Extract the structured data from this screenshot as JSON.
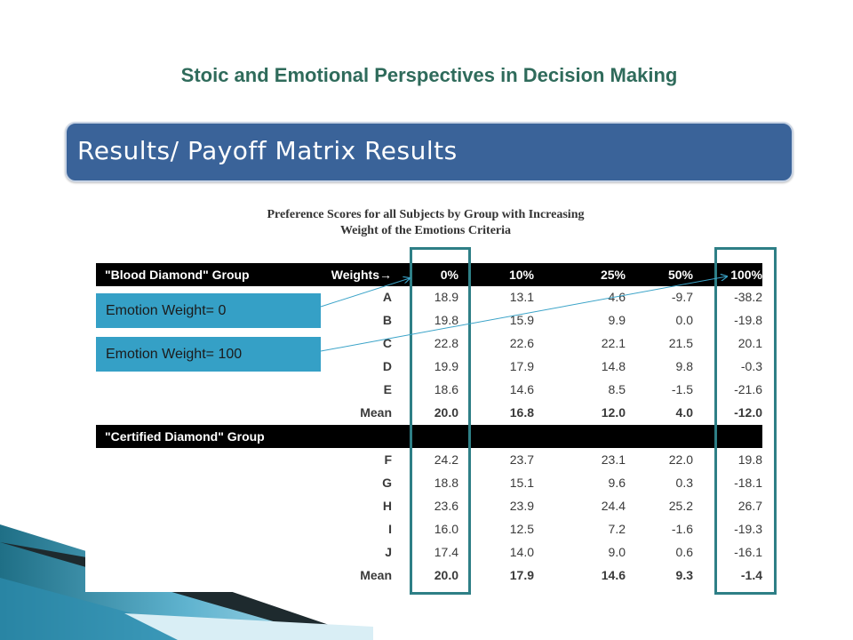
{
  "slide": {
    "title": "Stoic and Emotional Perspectives in Decision Making",
    "header": "Results/ Payoff Matrix Results"
  },
  "table": {
    "caption_line1": "Preference Scores for all Subjects by Group with Increasing",
    "caption_line2": "Weight of the Emotions Criteria",
    "weights_label": "Weights→",
    "weights": [
      "0%",
      "10%",
      "25%",
      "50%",
      "100%"
    ],
    "groups": [
      {
        "name": "\"Blood Diamond\" Group",
        "rows": [
          {
            "label": "A",
            "values": [
              "18.9",
              "13.1",
              "4.6",
              "-9.7",
              "-38.2"
            ]
          },
          {
            "label": "B",
            "values": [
              "19.8",
              "15.9",
              "9.9",
              "0.0",
              "-19.8"
            ]
          },
          {
            "label": "C",
            "values": [
              "22.8",
              "22.6",
              "22.1",
              "21.5",
              "20.1"
            ]
          },
          {
            "label": "D",
            "values": [
              "19.9",
              "17.9",
              "14.8",
              "9.8",
              "-0.3"
            ]
          },
          {
            "label": "E",
            "values": [
              "18.6",
              "14.6",
              "8.5",
              "-1.5",
              "-21.6"
            ]
          },
          {
            "label": "Mean",
            "values": [
              "20.0",
              "16.8",
              "12.0",
              "4.0",
              "-12.0"
            ]
          }
        ]
      },
      {
        "name": "\"Certified Diamond\" Group",
        "rows": [
          {
            "label": "F",
            "values": [
              "24.2",
              "23.7",
              "23.1",
              "22.0",
              "19.8"
            ]
          },
          {
            "label": "G",
            "values": [
              "18.8",
              "15.1",
              "9.6",
              "0.3",
              "-18.1"
            ]
          },
          {
            "label": "H",
            "values": [
              "23.6",
              "23.9",
              "24.4",
              "25.2",
              "26.7"
            ]
          },
          {
            "label": "I",
            "values": [
              "16.0",
              "12.5",
              "7.2",
              "-1.6",
              "-19.3"
            ]
          },
          {
            "label": "J",
            "values": [
              "17.4",
              "14.0",
              "9.0",
              "0.6",
              "-16.1"
            ]
          },
          {
            "label": "Mean",
            "values": [
              "20.0",
              "17.9",
              "14.6",
              "9.3",
              "-1.4"
            ]
          }
        ]
      }
    ]
  },
  "callouts": {
    "zero": "Emotion Weight= 0",
    "hundred": "Emotion Weight= 100"
  },
  "colors": {
    "title": "#2f6b5b",
    "header_bar": "#3a6399",
    "highlight": "#2e7f86",
    "callout": "#35a0c6"
  }
}
